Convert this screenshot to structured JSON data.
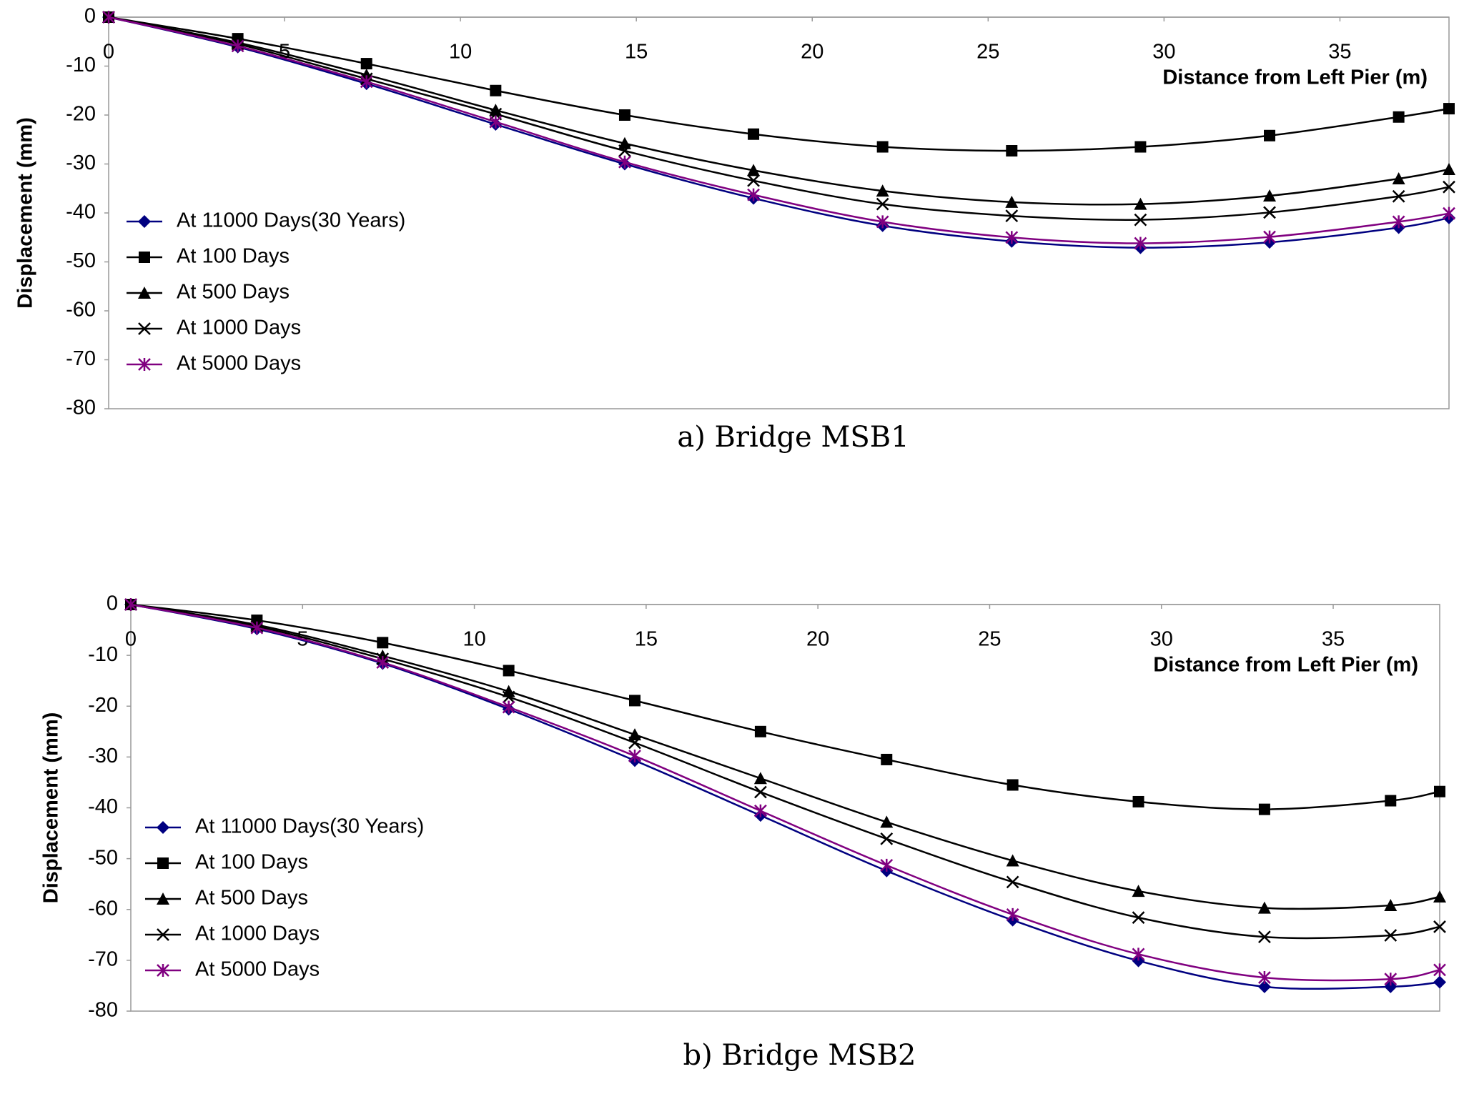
{
  "chart_data": [
    {
      "type": "line",
      "caption": "a) Bridge MSB1",
      "x_label": "Distance from Left Pier (m)",
      "y_label": "Displacement (mm)",
      "x": [
        0,
        3.67,
        7.33,
        11,
        14.67,
        18.33,
        22,
        25.67,
        29.33,
        33,
        36.67,
        38.1
      ],
      "xlim": [
        0,
        38.1
      ],
      "xticks": [
        0,
        5,
        10,
        15,
        20,
        25,
        30,
        35
      ],
      "ylim": [
        -80,
        0
      ],
      "yticks": [
        0,
        -10,
        -20,
        -30,
        -40,
        -50,
        -60,
        -70,
        -80
      ],
      "series": [
        {
          "name": "At 11000 Days(30 Years)",
          "color": "#000080",
          "marker": "diamond",
          "values": [
            0,
            -6.1,
            -13.6,
            -21.9,
            -30,
            -37,
            -42.6,
            -45.8,
            -47.1,
            -46,
            -43,
            -41
          ]
        },
        {
          "name": "At 100 Days",
          "color": "#000000",
          "marker": "square",
          "values": [
            0,
            -4.4,
            -9.5,
            -15,
            -20,
            -23.9,
            -26.5,
            -27.3,
            -26.5,
            -24.2,
            -20.4,
            -18.7
          ]
        },
        {
          "name": "At 500 Days",
          "color": "#000000",
          "marker": "triangle",
          "values": [
            0,
            -5.2,
            -11.8,
            -19,
            -25.8,
            -31.3,
            -35.5,
            -37.8,
            -38.2,
            -36.5,
            -33,
            -31.1
          ]
        },
        {
          "name": "At 1000 Days",
          "color": "#000000",
          "marker": "x",
          "values": [
            0,
            -5.5,
            -12.6,
            -19.8,
            -27.3,
            -33.4,
            -38.2,
            -40.6,
            -41.4,
            -39.9,
            -36.6,
            -34.7
          ]
        },
        {
          "name": "At 5000 Days",
          "color": "#800080",
          "marker": "star",
          "values": [
            0,
            -5.9,
            -13.2,
            -21.4,
            -29.6,
            -36.3,
            -41.8,
            -45,
            -46.2,
            -44.9,
            -41.8,
            -40.1
          ]
        }
      ]
    },
    {
      "type": "line",
      "caption": "b) Bridge MSB2",
      "x_label": "Distance from Left Pier (m)",
      "y_label": "Displacement (mm)",
      "x": [
        0,
        3.67,
        7.33,
        11,
        14.67,
        18.33,
        22,
        25.67,
        29.33,
        33,
        36.67,
        38.1
      ],
      "xlim": [
        0,
        38.1
      ],
      "xticks": [
        0,
        5,
        10,
        15,
        20,
        25,
        30,
        35
      ],
      "ylim": [
        -80,
        0
      ],
      "yticks": [
        0,
        -10,
        -20,
        -30,
        -40,
        -50,
        -60,
        -70,
        -80
      ],
      "series": [
        {
          "name": "At 11000 Days(30 Years)",
          "color": "#000080",
          "marker": "diamond",
          "values": [
            0,
            -4.8,
            -11.6,
            -20.6,
            -30.7,
            -41.5,
            -52.4,
            -62.1,
            -70.1,
            -75.2,
            -75.2,
            -74.3
          ]
        },
        {
          "name": "At 100 Days",
          "color": "#000000",
          "marker": "square",
          "values": [
            0,
            -3.1,
            -7.5,
            -13,
            -18.9,
            -25,
            -30.5,
            -35.5,
            -38.8,
            -40.3,
            -38.6,
            -36.8
          ]
        },
        {
          "name": "At 500 Days",
          "color": "#000000",
          "marker": "triangle",
          "values": [
            0,
            -4,
            -10.1,
            -17.1,
            -25.6,
            -34.2,
            -42.8,
            -50.4,
            -56.4,
            -59.7,
            -59.2,
            -57.5
          ]
        },
        {
          "name": "At 1000 Days",
          "color": "#000000",
          "marker": "x",
          "values": [
            0,
            -4.3,
            -10.7,
            -18.2,
            -27.2,
            -36.9,
            -46.1,
            -54.6,
            -61.6,
            -65.4,
            -65.1,
            -63.4
          ]
        },
        {
          "name": "At 5000 Days",
          "color": "#800080",
          "marker": "star",
          "values": [
            0,
            -4.6,
            -11.4,
            -20.2,
            -29.8,
            -40.6,
            -51.3,
            -61,
            -68.8,
            -73.4,
            -73.7,
            -71.9
          ]
        }
      ]
    }
  ]
}
